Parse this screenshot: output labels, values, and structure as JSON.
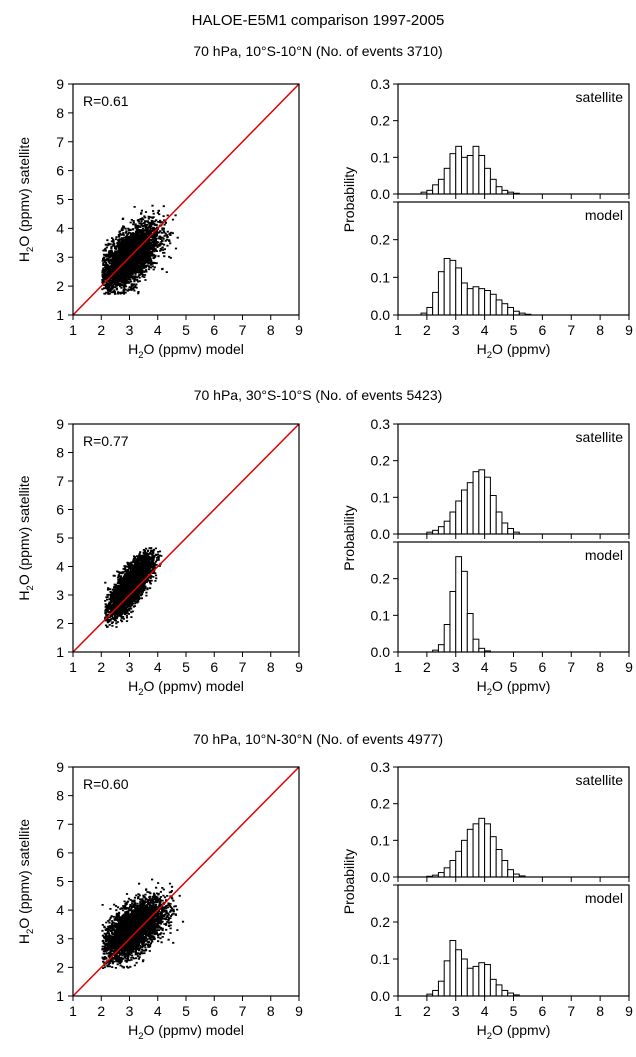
{
  "figure_title": "HALOE-E5M1 comparison 1997-2005",
  "colors": {
    "identity_line": "#e00000",
    "scatter": "#000000",
    "bar_fill": "#ffffff",
    "axis": "#000000"
  },
  "scatter_axes": {
    "xlabel_main": "H",
    "xlabel_sub": "2",
    "xlabel_rest": "O (ppmv) model",
    "ylabel_main": "H",
    "ylabel_sub": "2",
    "ylabel_rest": "O (ppmv) satellite"
  },
  "hist_axes": {
    "ylabel": "Probability",
    "xlabel_main": "H",
    "xlabel_sub": "2",
    "xlabel_rest": "O (ppmv)",
    "top_label": "satellite",
    "bottom_label": "model"
  },
  "chart_data": [
    {
      "panel": "10S-10N",
      "subtitle": "70 hPa, 10°S-10°N (No. of events 3710)",
      "scatter": {
        "type": "scatter",
        "r_label": "R=0.61",
        "xlim": [
          1,
          9
        ],
        "ylim": [
          1,
          9
        ],
        "xticks": [
          "1",
          "2",
          "3",
          "4",
          "5",
          "6",
          "7",
          "8",
          "9"
        ],
        "yticks": [
          "1",
          "2",
          "3",
          "4",
          "5",
          "6",
          "7",
          "8",
          "9"
        ],
        "identity_line": true,
        "cloud": {
          "center": [
            2.95,
            3.0
          ],
          "sx": 0.52,
          "sy": 0.58,
          "rho": 0.61,
          "n": 3710,
          "xmin": 2.0,
          "xmax": 4.8,
          "ymin": 1.75,
          "ymax": 5.0
        }
      },
      "histograms": {
        "type": "bar",
        "xlim": [
          1,
          9
        ],
        "ylim": [
          0,
          0.3
        ],
        "xticks": [
          "1",
          "2",
          "3",
          "4",
          "5",
          "6",
          "7",
          "8",
          "9"
        ],
        "yticks": [
          "0.0",
          "0.1",
          "0.2",
          "0.3"
        ],
        "bin_width": 0.2,
        "bin_start": 1.8,
        "satellite": [
          0.005,
          0.01,
          0.025,
          0.04,
          0.07,
          0.11,
          0.13,
          0.1,
          0.105,
          0.13,
          0.105,
          0.07,
          0.04,
          0.02,
          0.01,
          0.005,
          0.002
        ],
        "model": [
          0.005,
          0.02,
          0.06,
          0.115,
          0.15,
          0.145,
          0.125,
          0.085,
          0.07,
          0.075,
          0.07,
          0.065,
          0.055,
          0.04,
          0.03,
          0.02,
          0.01,
          0.005,
          0.002
        ]
      }
    },
    {
      "panel": "30S-10S",
      "subtitle": "70 hPa, 30°S-10°S (No. of events 5423)",
      "scatter": {
        "type": "scatter",
        "r_label": "R=0.77",
        "xlim": [
          1,
          9
        ],
        "ylim": [
          1,
          9
        ],
        "xticks": [
          "1",
          "2",
          "3",
          "4",
          "5",
          "6",
          "7",
          "8",
          "9"
        ],
        "yticks": [
          "1",
          "2",
          "3",
          "4",
          "5",
          "6",
          "7",
          "8",
          "9"
        ],
        "identity_line": true,
        "cloud": {
          "center": [
            3.0,
            3.35
          ],
          "sx": 0.38,
          "sy": 0.52,
          "rho": 0.77,
          "n": 5423,
          "xmin": 2.1,
          "xmax": 4.1,
          "ymin": 1.9,
          "ymax": 4.7
        }
      },
      "histograms": {
        "type": "bar",
        "xlim": [
          1,
          9
        ],
        "ylim": [
          0,
          0.3
        ],
        "xticks": [
          "1",
          "2",
          "3",
          "4",
          "5",
          "6",
          "7",
          "8",
          "9"
        ],
        "yticks": [
          "0.0",
          "0.1",
          "0.2",
          "0.3"
        ],
        "bin_width": 0.2,
        "bin_start": 2.0,
        "satellite": [
          0.005,
          0.01,
          0.02,
          0.035,
          0.06,
          0.09,
          0.12,
          0.14,
          0.17,
          0.175,
          0.155,
          0.105,
          0.06,
          0.03,
          0.015,
          0.005
        ],
        "model": [
          0.0,
          0.005,
          0.02,
          0.075,
          0.165,
          0.26,
          0.22,
          0.105,
          0.035,
          0.01,
          0.003
        ]
      }
    },
    {
      "panel": "10N-30N",
      "subtitle": "70 hPa, 10°N-30°N (No. of events 4977)",
      "scatter": {
        "type": "scatter",
        "r_label": "R=0.60",
        "xlim": [
          1,
          9
        ],
        "ylim": [
          1,
          9
        ],
        "xticks": [
          "1",
          "2",
          "3",
          "4",
          "5",
          "6",
          "7",
          "8",
          "9"
        ],
        "yticks": [
          "1",
          "2",
          "3",
          "4",
          "5",
          "6",
          "7",
          "8",
          "9"
        ],
        "identity_line": true,
        "cloud": {
          "center": [
            3.1,
            3.35
          ],
          "sx": 0.55,
          "sy": 0.52,
          "rho": 0.6,
          "n": 4977,
          "xmin": 2.0,
          "xmax": 4.9,
          "ymin": 2.0,
          "ymax": 5.2
        }
      },
      "histograms": {
        "type": "bar",
        "xlim": [
          1,
          9
        ],
        "ylim": [
          0,
          0.3
        ],
        "xticks": [
          "1",
          "2",
          "3",
          "4",
          "5",
          "6",
          "7",
          "8",
          "9"
        ],
        "yticks": [
          "0.0",
          "0.1",
          "0.2",
          "0.3"
        ],
        "bin_width": 0.2,
        "bin_start": 2.0,
        "satellite": [
          0.002,
          0.005,
          0.012,
          0.025,
          0.045,
          0.07,
          0.1,
          0.13,
          0.145,
          0.16,
          0.145,
          0.11,
          0.075,
          0.045,
          0.02,
          0.008,
          0.003
        ],
        "model": [
          0.005,
          0.015,
          0.04,
          0.095,
          0.15,
          0.125,
          0.1,
          0.075,
          0.08,
          0.09,
          0.085,
          0.045,
          0.03,
          0.015,
          0.008,
          0.003
        ]
      }
    }
  ]
}
